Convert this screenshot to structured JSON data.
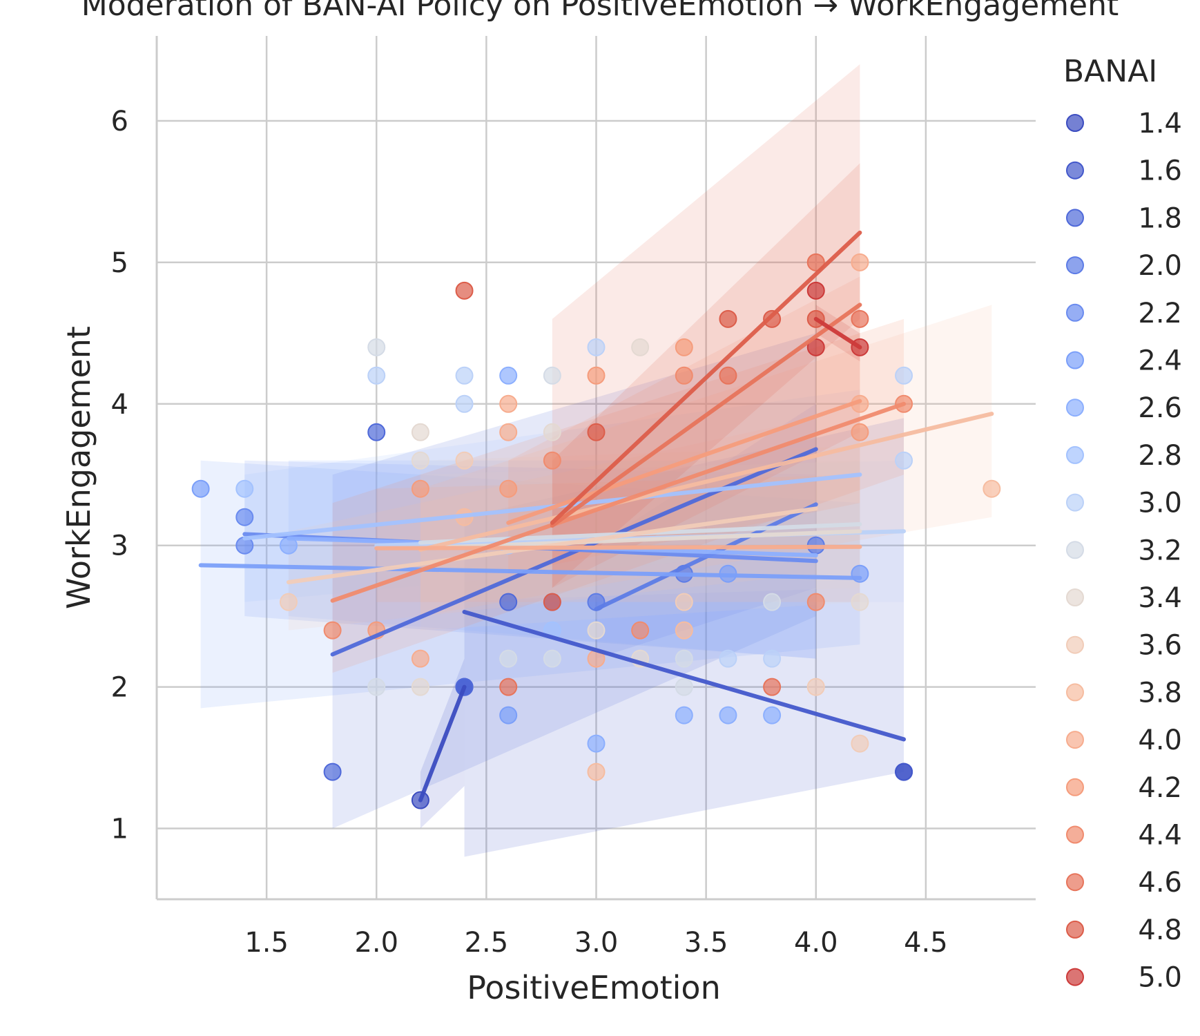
{
  "chart_data": {
    "type": "scatter",
    "title": "Moderation of BAN-AI Policy on PositiveEmotion → WorkEngagement",
    "xlabel": "PositiveEmotion",
    "ylabel": "WorkEngagement",
    "xlim": [
      1.0,
      5.0
    ],
    "ylim": [
      0.5,
      6.6
    ],
    "xticks": [
      "1.5",
      "2.0",
      "2.5",
      "3.0",
      "3.5",
      "4.0",
      "4.5"
    ],
    "yticks": [
      "1",
      "2",
      "3",
      "4",
      "5",
      "6"
    ],
    "grid": true,
    "legend": {
      "title": "BANAI",
      "placement": "right"
    },
    "series": [
      {
        "name": "1.4",
        "color": "#3b4cc0",
        "points": [
          [
            2.2,
            1.2
          ],
          [
            2.4,
            2.0
          ],
          [
            4.4,
            1.4
          ]
        ],
        "fit": [
          [
            2.2,
            1.2
          ],
          [
            2.4,
            2.0
          ]
        ],
        "band": [
          [
            2.2,
            1.0
          ],
          [
            2.4,
            1.3
          ],
          [
            2.4,
            2.2
          ],
          [
            2.2,
            1.4
          ]
        ]
      },
      {
        "name": "1.6",
        "color": "#4358cb",
        "points": [
          [
            2.4,
            2.0
          ],
          [
            4.4,
            1.4
          ]
        ],
        "fit": [
          [
            2.4,
            2.53
          ],
          [
            4.4,
            1.63
          ]
        ],
        "band": [
          [
            2.4,
            0.8
          ],
          [
            4.4,
            1.4
          ],
          [
            4.4,
            3.9
          ],
          [
            2.4,
            3.2
          ]
        ]
      },
      {
        "name": "1.8",
        "color": "#4f69d9",
        "points": [
          [
            1.8,
            1.4
          ],
          [
            2.0,
            3.8
          ],
          [
            2.4,
            2.0
          ],
          [
            2.6,
            2.6
          ]
        ],
        "fit": [
          [
            1.8,
            2.23
          ],
          [
            4.0,
            3.68
          ]
        ],
        "band": [
          [
            1.8,
            1.0
          ],
          [
            4.0,
            2.5
          ],
          [
            4.0,
            4.5
          ],
          [
            1.8,
            3.5
          ]
        ]
      },
      {
        "name": "2.0",
        "color": "#5d7ce6",
        "points": [
          [
            3.0,
            2.6
          ],
          [
            3.4,
            2.8
          ],
          [
            4.0,
            3.0
          ]
        ],
        "fit": [
          [
            3.0,
            2.55
          ],
          [
            4.0,
            3.29
          ]
        ],
        "band": [
          [
            3.0,
            2.2
          ],
          [
            4.0,
            2.7
          ],
          [
            4.0,
            4.0
          ],
          [
            3.0,
            3.0
          ]
        ]
      },
      {
        "name": "2.2",
        "color": "#6a8bef",
        "points": [
          [
            1.4,
            3.2
          ],
          [
            1.4,
            3.0
          ],
          [
            2.8,
            2.6
          ]
        ],
        "fit": [
          [
            1.4,
            3.08
          ],
          [
            4.0,
            2.89
          ]
        ],
        "band": [
          [
            1.4,
            2.5
          ],
          [
            4.0,
            2.2
          ],
          [
            4.0,
            3.5
          ],
          [
            1.4,
            3.6
          ]
        ]
      },
      {
        "name": "2.4",
        "color": "#7b9ff9",
        "points": [
          [
            1.2,
            3.4
          ],
          [
            2.6,
            1.8
          ],
          [
            3.6,
            2.8
          ],
          [
            4.2,
            2.8
          ]
        ],
        "fit": [
          [
            1.2,
            2.86
          ],
          [
            4.2,
            2.77
          ]
        ],
        "band": [
          [
            1.2,
            1.85
          ],
          [
            4.2,
            2.3
          ],
          [
            4.2,
            3.3
          ],
          [
            1.2,
            3.6
          ]
        ]
      },
      {
        "name": "2.6",
        "color": "#8caffe",
        "points": [
          [
            1.6,
            3.0
          ],
          [
            2.6,
            4.2
          ],
          [
            3.4,
            1.8
          ],
          [
            3.6,
            1.8
          ],
          [
            3.8,
            1.8
          ],
          [
            3.0,
            1.6
          ]
        ],
        "fit": [
          [
            1.6,
            3.05
          ],
          [
            4.0,
            2.93
          ]
        ],
        "band": [
          [
            1.6,
            2.5
          ],
          [
            4.0,
            2.2
          ],
          [
            4.0,
            3.6
          ],
          [
            1.6,
            3.6
          ]
        ]
      },
      {
        "name": "2.8",
        "color": "#a3c2fe",
        "points": [
          [
            1.4,
            3.4
          ],
          [
            2.6,
            3.0
          ],
          [
            2.8,
            2.4
          ]
        ],
        "fit": [
          [
            1.4,
            3.05
          ],
          [
            4.2,
            3.5
          ]
        ],
        "band": [
          [
            1.4,
            2.6
          ],
          [
            4.2,
            3.0
          ],
          [
            4.2,
            4.1
          ],
          [
            1.4,
            3.5
          ]
        ]
      },
      {
        "name": "3.0",
        "color": "#bbd1f8",
        "points": [
          [
            2.0,
            4.2
          ],
          [
            2.4,
            4.2
          ],
          [
            2.4,
            4.0
          ],
          [
            3.0,
            4.4
          ],
          [
            4.4,
            4.2
          ],
          [
            4.4,
            3.6
          ],
          [
            3.6,
            2.2
          ],
          [
            3.8,
            2.2
          ]
        ],
        "fit": [
          [
            2.0,
            3.0
          ],
          [
            4.4,
            3.1
          ]
        ],
        "band": [
          [
            2.0,
            2.6
          ],
          [
            4.4,
            2.6
          ],
          [
            4.4,
            3.6
          ],
          [
            2.0,
            3.5
          ]
        ]
      },
      {
        "name": "3.2",
        "color": "#d4dbe6",
        "points": [
          [
            2.0,
            4.4
          ],
          [
            2.8,
            4.2
          ],
          [
            2.6,
            2.2
          ],
          [
            2.8,
            2.2
          ],
          [
            3.4,
            2.0
          ],
          [
            3.4,
            2.2
          ],
          [
            3.8,
            2.6
          ],
          [
            2.0,
            2.0
          ]
        ],
        "fit": [
          [
            2.2,
            3.02
          ],
          [
            4.2,
            3.15
          ]
        ],
        "band": [
          [
            2.2,
            2.6
          ],
          [
            4.2,
            2.7
          ],
          [
            4.2,
            3.6
          ],
          [
            2.2,
            3.5
          ]
        ]
      },
      {
        "name": "3.4",
        "color": "#e4d9d2",
        "points": [
          [
            2.2,
            3.8
          ],
          [
            2.2,
            3.6
          ],
          [
            2.2,
            2.0
          ],
          [
            2.8,
            3.8
          ],
          [
            3.2,
            4.4
          ],
          [
            3.2,
            2.2
          ],
          [
            4.2,
            2.6
          ],
          [
            3.0,
            2.4
          ]
        ],
        "fit": [
          [
            2.2,
            2.98
          ],
          [
            4.2,
            3.1
          ]
        ],
        "band": [
          [
            2.2,
            2.4
          ],
          [
            4.2,
            2.6
          ],
          [
            4.2,
            3.7
          ],
          [
            2.2,
            3.6
          ]
        ]
      },
      {
        "name": "3.6",
        "color": "#f1ccb8",
        "points": [
          [
            1.6,
            2.6
          ],
          [
            2.4,
            3.6
          ],
          [
            3.4,
            2.6
          ],
          [
            4.0,
            2.0
          ],
          [
            4.2,
            1.6
          ]
        ],
        "fit": [
          [
            1.6,
            2.74
          ],
          [
            4.0,
            3.26
          ]
        ],
        "band": [
          [
            1.6,
            2.4
          ],
          [
            4.0,
            2.8
          ],
          [
            4.0,
            3.9
          ],
          [
            1.6,
            3.1
          ]
        ]
      },
      {
        "name": "3.8",
        "color": "#f6bca0",
        "points": [
          [
            4.8,
            3.4
          ],
          [
            2.4,
            3.2
          ],
          [
            3.0,
            1.4
          ],
          [
            3.4,
            2.4
          ]
        ],
        "fit": [
          [
            2.2,
            2.97
          ],
          [
            4.8,
            3.93
          ]
        ],
        "band": [
          [
            2.2,
            2.5
          ],
          [
            4.8,
            3.2
          ],
          [
            4.8,
            4.7
          ],
          [
            2.2,
            3.4
          ]
        ]
      },
      {
        "name": "4.0",
        "color": "#f7ac8e",
        "points": [
          [
            2.2,
            2.2
          ],
          [
            2.6,
            4.0
          ],
          [
            2.6,
            3.8
          ],
          [
            3.0,
            2.2
          ],
          [
            4.2,
            4.0
          ],
          [
            4.2,
            5.0
          ]
        ],
        "fit": [
          [
            2.0,
            2.98
          ],
          [
            4.2,
            2.99
          ]
        ],
        "band": [
          [
            2.0,
            2.6
          ],
          [
            4.2,
            2.6
          ],
          [
            4.2,
            3.5
          ],
          [
            2.0,
            3.4
          ]
        ]
      },
      {
        "name": "4.2",
        "color": "#f59c7c",
        "points": [
          [
            2.0,
            2.4
          ],
          [
            2.2,
            3.4
          ],
          [
            2.6,
            3.4
          ],
          [
            3.0,
            4.2
          ],
          [
            3.4,
            4.4
          ],
          [
            4.2,
            3.8
          ]
        ],
        "fit": [
          [
            2.6,
            3.16
          ],
          [
            4.2,
            4.02
          ]
        ],
        "band": [
          [
            2.6,
            2.8
          ],
          [
            4.2,
            3.3
          ],
          [
            4.2,
            4.9
          ],
          [
            2.6,
            3.6
          ]
        ]
      },
      {
        "name": "4.4",
        "color": "#f08b6e",
        "points": [
          [
            1.8,
            2.4
          ],
          [
            2.8,
            3.6
          ],
          [
            3.2,
            2.4
          ],
          [
            3.4,
            4.2
          ],
          [
            4.0,
            2.6
          ],
          [
            4.4,
            4.0
          ]
        ],
        "fit": [
          [
            1.8,
            2.61
          ],
          [
            4.4,
            4.0
          ]
        ],
        "band": [
          [
            1.8,
            2.1
          ],
          [
            4.4,
            3.5
          ],
          [
            4.4,
            4.6
          ],
          [
            1.8,
            3.3
          ]
        ]
      },
      {
        "name": "4.6",
        "color": "#e7745b",
        "points": [
          [
            2.6,
            2.0
          ],
          [
            3.6,
            4.2
          ],
          [
            3.8,
            2.0
          ],
          [
            4.0,
            5.0
          ],
          [
            4.2,
            4.6
          ]
        ],
        "fit": [
          [
            2.8,
            3.14
          ],
          [
            4.2,
            4.7
          ]
        ],
        "band": [
          [
            2.8,
            2.7
          ],
          [
            4.2,
            3.8
          ],
          [
            4.2,
            6.4
          ],
          [
            2.8,
            4.6
          ]
        ]
      },
      {
        "name": "4.8",
        "color": "#dc5d4a",
        "points": [
          [
            2.4,
            4.8
          ],
          [
            3.0,
            3.8
          ],
          [
            3.6,
            4.6
          ],
          [
            3.8,
            4.6
          ],
          [
            2.8,
            2.6
          ],
          [
            4.0,
            4.6
          ]
        ],
        "fit": [
          [
            2.8,
            3.16
          ],
          [
            4.2,
            5.21
          ]
        ],
        "band": [
          [
            2.8,
            2.7
          ],
          [
            4.2,
            4.6
          ],
          [
            4.2,
            5.7
          ],
          [
            2.8,
            3.6
          ]
        ]
      },
      {
        "name": "5.0",
        "color": "#cc3a39",
        "points": [
          [
            4.0,
            4.8
          ],
          [
            4.0,
            4.4
          ],
          [
            4.2,
            4.4
          ]
        ],
        "fit": [
          [
            4.0,
            4.6
          ],
          [
            4.2,
            4.4
          ]
        ],
        "band": [
          [
            4.0,
            4.5
          ],
          [
            4.2,
            4.3
          ],
          [
            4.2,
            4.5
          ],
          [
            4.0,
            4.7
          ]
        ]
      }
    ]
  }
}
